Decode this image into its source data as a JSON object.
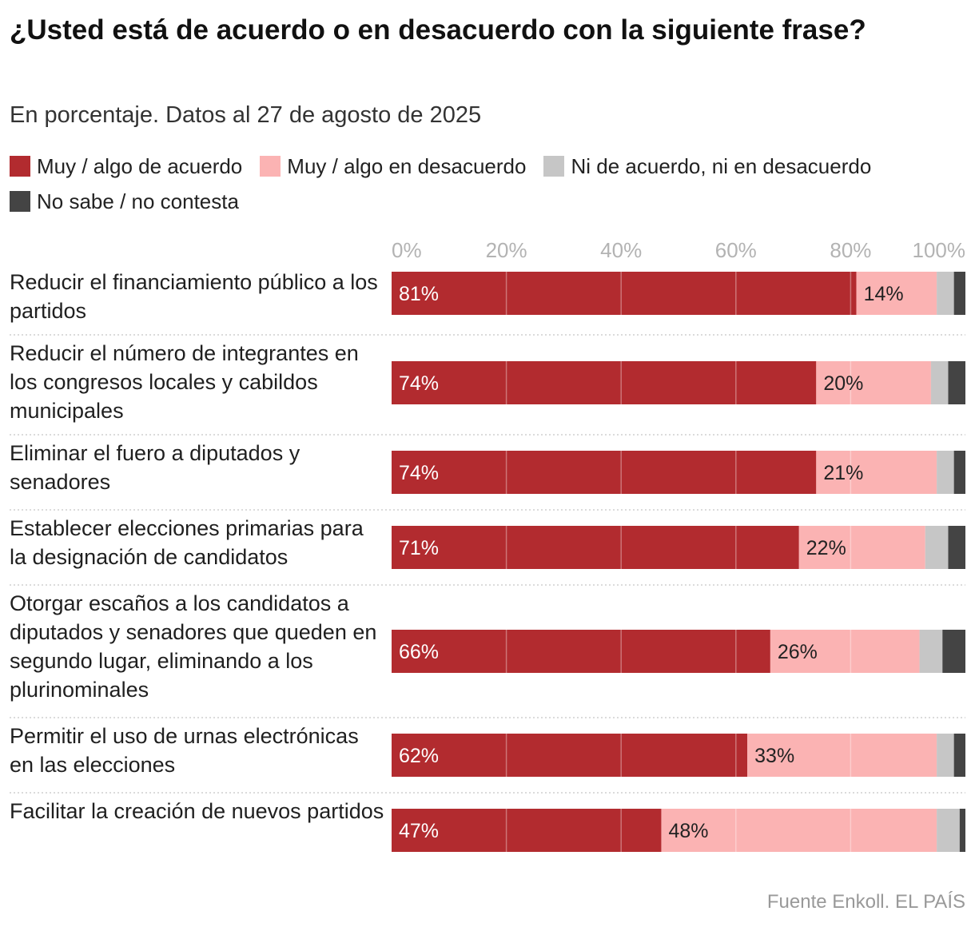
{
  "chart_data": {
    "type": "bar",
    "orientation": "horizontal",
    "stacked": true,
    "title": "¿Usted está de acuerdo o en desacuerdo con la siguiente frase?",
    "subtitle": "En porcentaje. Datos al 27 de agosto de 2025",
    "source": "Fuente Enkoll. EL PAÍS",
    "xlim": [
      0,
      100
    ],
    "xticks": [
      "0%",
      "20%",
      "40%",
      "60%",
      "80%",
      "100%"
    ],
    "categories": [
      "Reducir el financiamiento público a los partidos",
      "Reducir el número de integrantes en los congresos locales y cabildos municipales",
      "Eliminar el fuero a diputados y senadores",
      "Establecer elecciones primarias para la designación de candidatos",
      "Otorgar escaños a los candidatos a diputados y senadores que queden en segundo lugar, eliminando a los plurinominales",
      "Permitir el uso de urnas electrónicas en las elecciones",
      "Facilitar la creación de nuevos partidos"
    ],
    "series": [
      {
        "name": "Muy / algo de acuerdo",
        "color": "#b22b2f",
        "values": [
          81,
          74,
          74,
          71,
          66,
          62,
          47
        ],
        "labels": [
          "81%",
          "74%",
          "74%",
          "71%",
          "66%",
          "62%",
          "47%"
        ]
      },
      {
        "name": "Muy / algo en desacuerdo",
        "color": "#fbb3b3",
        "values": [
          14,
          20,
          21,
          22,
          26,
          33,
          48
        ],
        "labels": [
          "14%",
          "20%",
          "21%",
          "22%",
          "26%",
          "33%",
          "48%"
        ]
      },
      {
        "name": "Ni de acuerdo, ni en desacuerdo",
        "color": "#c6c6c6",
        "values": [
          3,
          3,
          3,
          4,
          4,
          3,
          4
        ],
        "labels": [
          "",
          "",
          "",
          "",
          "",
          "",
          ""
        ]
      },
      {
        "name": "No sabe / no contesta",
        "color": "#444444",
        "values": [
          2,
          3,
          2,
          3,
          4,
          2,
          1
        ],
        "labels": [
          "",
          "",
          "",
          "",
          "",
          "",
          ""
        ]
      }
    ]
  }
}
